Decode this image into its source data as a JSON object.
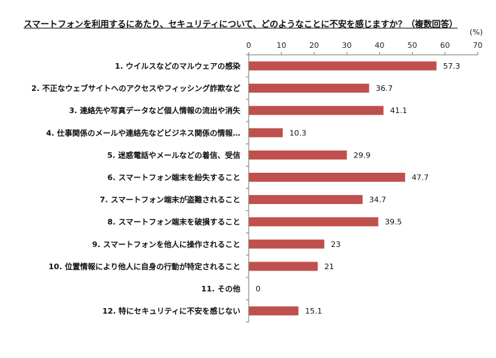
{
  "chart_data": {
    "type": "bar",
    "orientation": "horizontal",
    "title": "スマートフォンを利用するにあたり、セキュリティについて、どのようなことに不安を感じますか？（複数回答）",
    "unit": "(%)",
    "xlim": [
      0,
      70
    ],
    "ticks": [
      0,
      10,
      20,
      30,
      40,
      50,
      60,
      70
    ],
    "categories": [
      "1. ウイルスなどのマルウェアの感染",
      "2. 不正なウェブサイトへのアクセスやフィッシング詐欺など",
      "3. 連絡先や写真データなど個人情報の流出や消失",
      "4. 仕事関係のメールや連絡先などビジネス関係の情報…",
      "5. 迷惑電話やメールなどの着信、受信",
      "6. スマートフォン端末を紛失すること",
      "7. スマートフォン端末が盗難されること",
      "8. スマートフォン端末を破損すること",
      "9. スマートフォンを他人に操作されること",
      "10. 位置情報により他人に自身の行動が特定されること",
      "11. その他",
      "12. 特にセキュリティに不安を感じない"
    ],
    "values": [
      57.3,
      36.7,
      41.1,
      10.3,
      29.9,
      47.7,
      34.7,
      39.5,
      23,
      21,
      0,
      15.1
    ],
    "value_labels": [
      "57.3",
      "36.7",
      "41.1",
      "10.3",
      "29.9",
      "47.7",
      "34.7",
      "39.5",
      "23",
      "21",
      "0",
      "15.1"
    ],
    "bar_color": "#c0504d",
    "grid": false
  }
}
